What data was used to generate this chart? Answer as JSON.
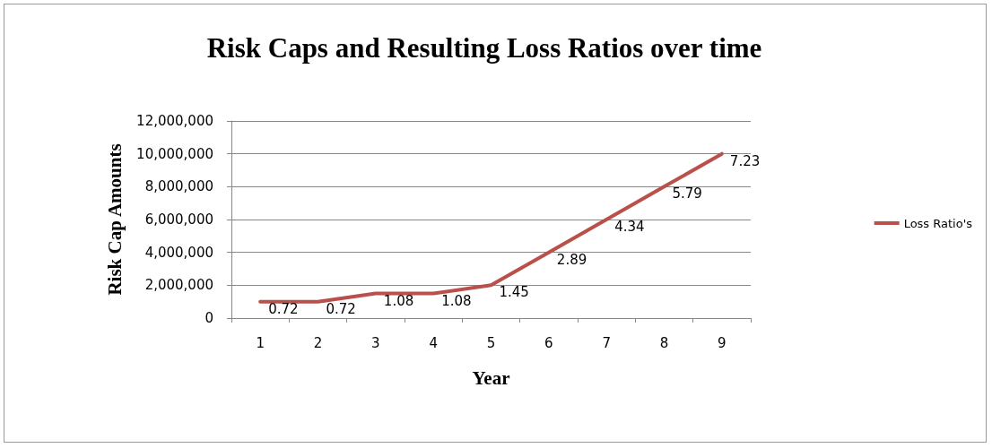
{
  "chart_data": {
    "type": "line",
    "title": "Risk Caps and Resulting Loss Ratios over time",
    "xlabel": "Year",
    "ylabel": "Risk Cap Amounts",
    "categories": [
      "1",
      "2",
      "3",
      "4",
      "5",
      "6",
      "7",
      "8",
      "9"
    ],
    "series": [
      {
        "name": "Loss Ratio's",
        "color": "#b9504b",
        "values": [
          1000000,
          1000000,
          1500000,
          1500000,
          2000000,
          4000000,
          6000000,
          8000000,
          10000000
        ]
      }
    ],
    "annotations": [
      {
        "text": "0.72",
        "x": "1",
        "y": 1000000
      },
      {
        "text": "0.72",
        "x": "2",
        "y": 1000000
      },
      {
        "text": "1.08",
        "x": "3",
        "y": 1500000
      },
      {
        "text": "1.08",
        "x": "4",
        "y": 1500000
      },
      {
        "text": "1.45",
        "x": "5",
        "y": 2000000
      },
      {
        "text": "2.89",
        "x": "6",
        "y": 4000000
      },
      {
        "text": "4.34",
        "x": "7",
        "y": 6000000
      },
      {
        "text": "5.79",
        "x": "8",
        "y": 8000000
      },
      {
        "text": "7.23",
        "x": "9",
        "y": 10000000
      }
    ],
    "ylim": [
      0,
      12000000
    ],
    "yticks": [
      0,
      {
        "value": 2000000,
        "label": "2,000,000"
      },
      {
        "value": 4000000,
        "label": "4,000,000"
      },
      {
        "value": 6000000,
        "label": "6,000,000"
      },
      {
        "value": 8000000,
        "label": "8,000,000"
      },
      {
        "value": 10000000,
        "label": "10,000,000"
      },
      {
        "value": 12000000,
        "label": "12,000,000"
      }
    ],
    "grid": "y",
    "legend": "right",
    "marker": "none",
    "line_style": "solid"
  }
}
